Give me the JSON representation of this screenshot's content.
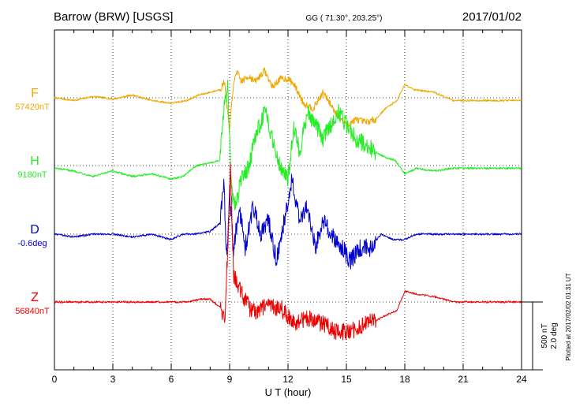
{
  "header": {
    "station": "Barrow (BRW)  [USGS]",
    "coords": "GG ( 71.30°, 203.25°)",
    "date": "2017/01/02"
  },
  "footer": {
    "plotted": "Plotted at 2017/02/02 01:31  UT"
  },
  "chart_data": {
    "type": "line",
    "title": "Barrow (BRW)  [USGS]",
    "xlabel": "U T (hour)",
    "ylabel": "",
    "xlim": [
      0,
      24
    ],
    "x_ticks": [
      "0",
      "3",
      "6",
      "9",
      "12",
      "15",
      "18",
      "21",
      "24"
    ],
    "scale_bar": {
      "line1": "500 nT",
      "line2": "2.0 deg"
    },
    "grid": true,
    "series": [
      {
        "name": "F",
        "baseline_label": "57420nT",
        "color": "#f0a800",
        "points": [
          [
            0,
            0
          ],
          [
            1,
            -20
          ],
          [
            2,
            10
          ],
          [
            3,
            -10
          ],
          [
            4,
            20
          ],
          [
            5,
            -20
          ],
          [
            6,
            -40
          ],
          [
            6.8,
            -20
          ],
          [
            7.4,
            20
          ],
          [
            8,
            40
          ],
          [
            8.5,
            60
          ],
          [
            8.75,
            120
          ],
          [
            8.85,
            -40
          ],
          [
            9.0,
            -240
          ],
          [
            9.15,
            40
          ],
          [
            9.35,
            200
          ],
          [
            9.6,
            120
          ],
          [
            10,
            160
          ],
          [
            10.3,
            120
          ],
          [
            10.8,
            200
          ],
          [
            11.2,
            80
          ],
          [
            11.6,
            140
          ],
          [
            12,
            140
          ],
          [
            12.3,
            100
          ],
          [
            12.8,
            -40
          ],
          [
            13.3,
            -80
          ],
          [
            13.8,
            40
          ],
          [
            14.5,
            -120
          ],
          [
            15,
            -200
          ],
          [
            15.5,
            -160
          ],
          [
            16,
            -180
          ],
          [
            16.5,
            -160
          ],
          [
            17,
            -80
          ],
          [
            17.6,
            -20
          ],
          [
            18,
            100
          ],
          [
            18.5,
            60
          ],
          [
            19.5,
            40
          ],
          [
            20.5,
            -20
          ],
          [
            21.5,
            -20
          ],
          [
            22.5,
            -20
          ],
          [
            24,
            -20
          ]
        ]
      },
      {
        "name": "H",
        "baseline_label": "9180nT",
        "color": "#22ee22",
        "points": [
          [
            0,
            -20
          ],
          [
            1,
            -40
          ],
          [
            2,
            -80
          ],
          [
            3,
            -40
          ],
          [
            4,
            -80
          ],
          [
            5,
            -60
          ],
          [
            6,
            -100
          ],
          [
            6.6,
            -80
          ],
          [
            7.3,
            0
          ],
          [
            8,
            20
          ],
          [
            8.5,
            40
          ],
          [
            8.7,
            400
          ],
          [
            8.9,
            600
          ],
          [
            9.0,
            200
          ],
          [
            9.1,
            -200
          ],
          [
            9.3,
            -300
          ],
          [
            9.6,
            -100
          ],
          [
            10,
            0
          ],
          [
            10.3,
            200
          ],
          [
            10.8,
            400
          ],
          [
            11.2,
            200
          ],
          [
            11.6,
            0
          ],
          [
            12,
            -100
          ],
          [
            12.3,
            300
          ],
          [
            12.6,
            100
          ],
          [
            13,
            400
          ],
          [
            13.4,
            300
          ],
          [
            13.8,
            200
          ],
          [
            14.2,
            300
          ],
          [
            14.6,
            400
          ],
          [
            15,
            300
          ],
          [
            15.5,
            200
          ],
          [
            16,
            150
          ],
          [
            16.5,
            100
          ],
          [
            17,
            60
          ],
          [
            17.5,
            40
          ],
          [
            18,
            -60
          ],
          [
            18.6,
            -20
          ],
          [
            19.5,
            -40
          ],
          [
            20.5,
            -20
          ],
          [
            21.5,
            -20
          ],
          [
            23,
            -20
          ],
          [
            24,
            -20
          ]
        ]
      },
      {
        "name": "D",
        "baseline_label": "-0.6deg",
        "color": "#0000cc",
        "points": [
          [
            0,
            0
          ],
          [
            1,
            -20
          ],
          [
            2,
            0
          ],
          [
            3,
            0
          ],
          [
            4,
            -20
          ],
          [
            5,
            0
          ],
          [
            6,
            -40
          ],
          [
            6.6,
            0
          ],
          [
            7.2,
            0
          ],
          [
            8,
            20
          ],
          [
            8.5,
            80
          ],
          [
            8.7,
            400
          ],
          [
            8.85,
            -200
          ],
          [
            9.0,
            300
          ],
          [
            9.2,
            -100
          ],
          [
            9.5,
            200
          ],
          [
            9.8,
            -100
          ],
          [
            10.2,
            200
          ],
          [
            10.6,
            0
          ],
          [
            11,
            100
          ],
          [
            11.4,
            -200
          ],
          [
            11.8,
            100
          ],
          [
            12.2,
            400
          ],
          [
            12.6,
            100
          ],
          [
            13,
            200
          ],
          [
            13.4,
            -100
          ],
          [
            13.8,
            100
          ],
          [
            14.2,
            0
          ],
          [
            14.8,
            -100
          ],
          [
            15.2,
            -200
          ],
          [
            15.7,
            -100
          ],
          [
            16.2,
            -100
          ],
          [
            16.8,
            0
          ],
          [
            17.4,
            -40
          ],
          [
            18,
            -40
          ],
          [
            18.6,
            0
          ],
          [
            19.5,
            0
          ],
          [
            20.5,
            0
          ],
          [
            21.5,
            0
          ],
          [
            23,
            0
          ],
          [
            24,
            0
          ]
        ]
      },
      {
        "name": "Z",
        "baseline_label": "56840nT",
        "color": "#ee0000",
        "points": [
          [
            0,
            0
          ],
          [
            1,
            0
          ],
          [
            2,
            0
          ],
          [
            3,
            0
          ],
          [
            4,
            0
          ],
          [
            5,
            0
          ],
          [
            6,
            0
          ],
          [
            6.8,
            0
          ],
          [
            7.5,
            20
          ],
          [
            8,
            20
          ],
          [
            8.5,
            -40
          ],
          [
            8.75,
            -140
          ],
          [
            8.9,
            380
          ],
          [
            9.05,
            1000
          ],
          [
            9.2,
            200
          ],
          [
            9.5,
            100
          ],
          [
            10,
            -40
          ],
          [
            10.4,
            -80
          ],
          [
            10.8,
            -40
          ],
          [
            11.2,
            -40
          ],
          [
            11.6,
            -40
          ],
          [
            12,
            -100
          ],
          [
            12.5,
            -160
          ],
          [
            13,
            -120
          ],
          [
            13.5,
            -140
          ],
          [
            14,
            -180
          ],
          [
            14.5,
            -220
          ],
          [
            15,
            -220
          ],
          [
            15.5,
            -200
          ],
          [
            16,
            -160
          ],
          [
            16.5,
            -140
          ],
          [
            17,
            -100
          ],
          [
            17.6,
            -60
          ],
          [
            18,
            80
          ],
          [
            18.5,
            60
          ],
          [
            19.5,
            40
          ],
          [
            20.5,
            0
          ],
          [
            21.5,
            0
          ],
          [
            23,
            0
          ],
          [
            24,
            0
          ]
        ]
      }
    ]
  }
}
